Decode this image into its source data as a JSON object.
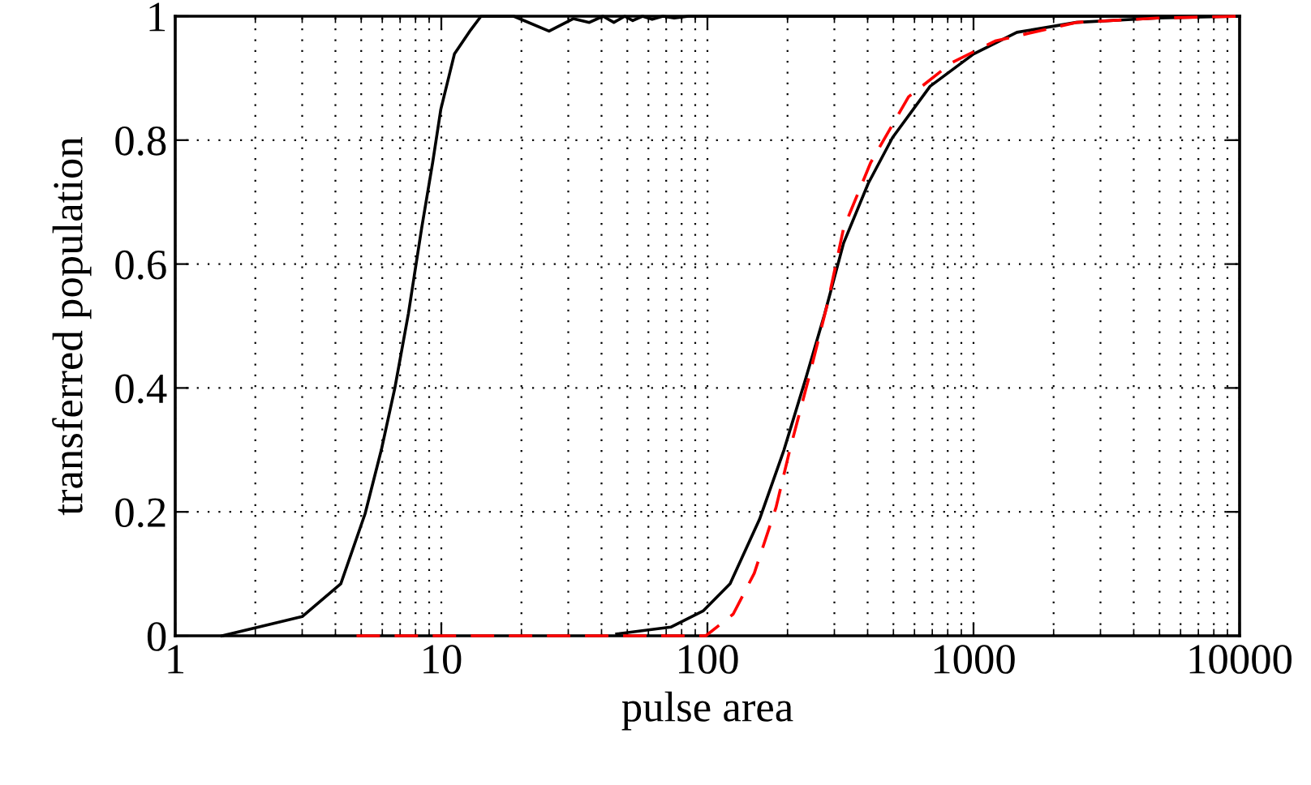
{
  "chart_data": {
    "type": "line",
    "xlabel": "pulse area",
    "ylabel": "transferred population",
    "log": "x",
    "xlim": [
      1,
      10000
    ],
    "xticks": [
      1,
      10,
      100,
      1000,
      10000
    ],
    "ylim": [
      0,
      1
    ],
    "yticks": [
      0,
      0.2,
      0.4,
      0.6,
      0.8,
      1
    ],
    "grid": true,
    "marker": "none",
    "series": [
      {
        "color": "#000000",
        "line_style": "solid",
        "x": [
          1.5,
          3.0,
          4.19,
          5.17,
          5.95,
          6.69,
          7.52,
          8.45,
          9.28,
          9.96,
          11.2,
          12.9,
          14.1,
          18.7,
          25.4,
          31.3,
          36.0,
          40.5,
          44.5,
          48.9,
          52.4,
          57,
          62,
          68,
          75,
          85,
          200,
          1000,
          10000
        ],
        "values": [
          0,
          0.031,
          0.084,
          0.197,
          0.3,
          0.4,
          0.52,
          0.66,
          0.764,
          0.85,
          0.939,
          0.978,
          1.0,
          1.0,
          0.976,
          0.996,
          0.99,
          1.0,
          0.99,
          1.0,
          0.993,
          1.0,
          0.995,
          1.0,
          0.997,
          1.0,
          1.0,
          1.0,
          1.0
        ]
      },
      {
        "color": "#000000",
        "line_style": "solid",
        "x": [
          45.6,
          72.8,
          96.3,
          121.7,
          157,
          194,
          234,
          276,
          325,
          402,
          496,
          687,
          1000,
          1455,
          2433,
          4900,
          10000
        ],
        "values": [
          0.003,
          0.014,
          0.04,
          0.084,
          0.188,
          0.3,
          0.415,
          0.52,
          0.634,
          0.73,
          0.804,
          0.887,
          0.939,
          0.974,
          0.99,
          0.997,
          1.0
        ]
      },
      {
        "color": "#ff0000",
        "line_style": "dashed",
        "x": [
          4.8,
          98.6,
          125,
          150,
          181,
          204,
          240,
          283,
          325,
          411,
          570,
          829,
          1206,
          2433,
          4900,
          10000
        ],
        "values": [
          0,
          0,
          0.035,
          0.101,
          0.207,
          0.3,
          0.415,
          0.537,
          0.658,
          0.764,
          0.87,
          0.925,
          0.96,
          0.99,
          0.997,
          1.0
        ]
      }
    ]
  }
}
